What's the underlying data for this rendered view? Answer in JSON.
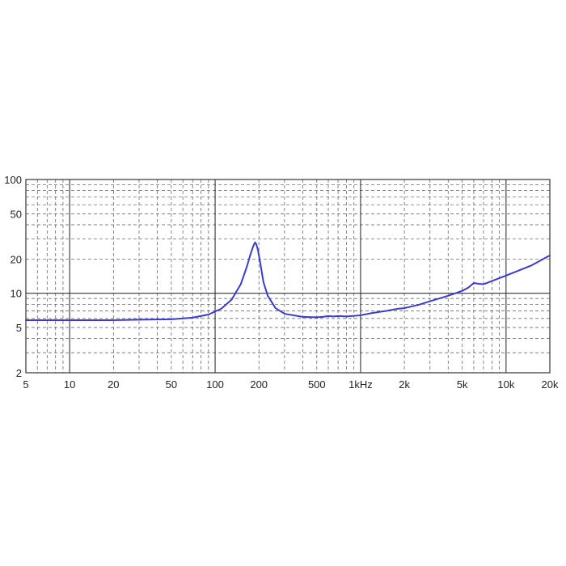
{
  "chart_data": {
    "type": "line",
    "x_scale": "log",
    "y_scale": "log",
    "xlim": [
      5,
      20000
    ],
    "ylim": [
      2,
      100
    ],
    "grid": true,
    "title": "",
    "xlabel": "",
    "ylabel": "",
    "x_ticks": [
      {
        "value": 5,
        "label": "5"
      },
      {
        "value": 10,
        "label": "10"
      },
      {
        "value": 20,
        "label": "20"
      },
      {
        "value": 50,
        "label": "50"
      },
      {
        "value": 100,
        "label": "100"
      },
      {
        "value": 200,
        "label": "200"
      },
      {
        "value": 500,
        "label": "500"
      },
      {
        "value": 1000,
        "label": "1kHz"
      },
      {
        "value": 2000,
        "label": "2k"
      },
      {
        "value": 5000,
        "label": "5k"
      },
      {
        "value": 10000,
        "label": "10k"
      },
      {
        "value": 20000,
        "label": "20k"
      }
    ],
    "y_ticks": [
      {
        "value": 100,
        "label": "100"
      },
      {
        "value": 50,
        "label": "50"
      },
      {
        "value": 20,
        "label": "20"
      },
      {
        "value": 10,
        "label": "10"
      },
      {
        "value": 5,
        "label": "5"
      },
      {
        "value": 2,
        "label": "2"
      }
    ],
    "line_color": "#3b3bd0",
    "series": [
      {
        "x": [
          5,
          10,
          20,
          30,
          50,
          70,
          90,
          110,
          130,
          150,
          165,
          175,
          183,
          188,
          192,
          197,
          205,
          215,
          230,
          260,
          300,
          400,
          500,
          550,
          600,
          650,
          700,
          800,
          1000,
          1200,
          1500,
          1800,
          2000,
          2500,
          3000,
          4000,
          5000,
          5500,
          6000,
          6500,
          7000,
          8000,
          10000,
          15000,
          20000
        ],
        "y": [
          5.8,
          5.8,
          5.8,
          5.85,
          5.9,
          6.1,
          6.5,
          7.3,
          8.8,
          12,
          17,
          22,
          26,
          28,
          27,
          24,
          18,
          12.5,
          9.5,
          7.4,
          6.6,
          6.2,
          6.15,
          6.2,
          6.3,
          6.25,
          6.3,
          6.25,
          6.4,
          6.7,
          7.0,
          7.3,
          7.4,
          7.9,
          8.5,
          9.5,
          10.5,
          11.2,
          12.3,
          12.1,
          12.0,
          12.8,
          14.3,
          17.6,
          21.5
        ]
      }
    ]
  }
}
